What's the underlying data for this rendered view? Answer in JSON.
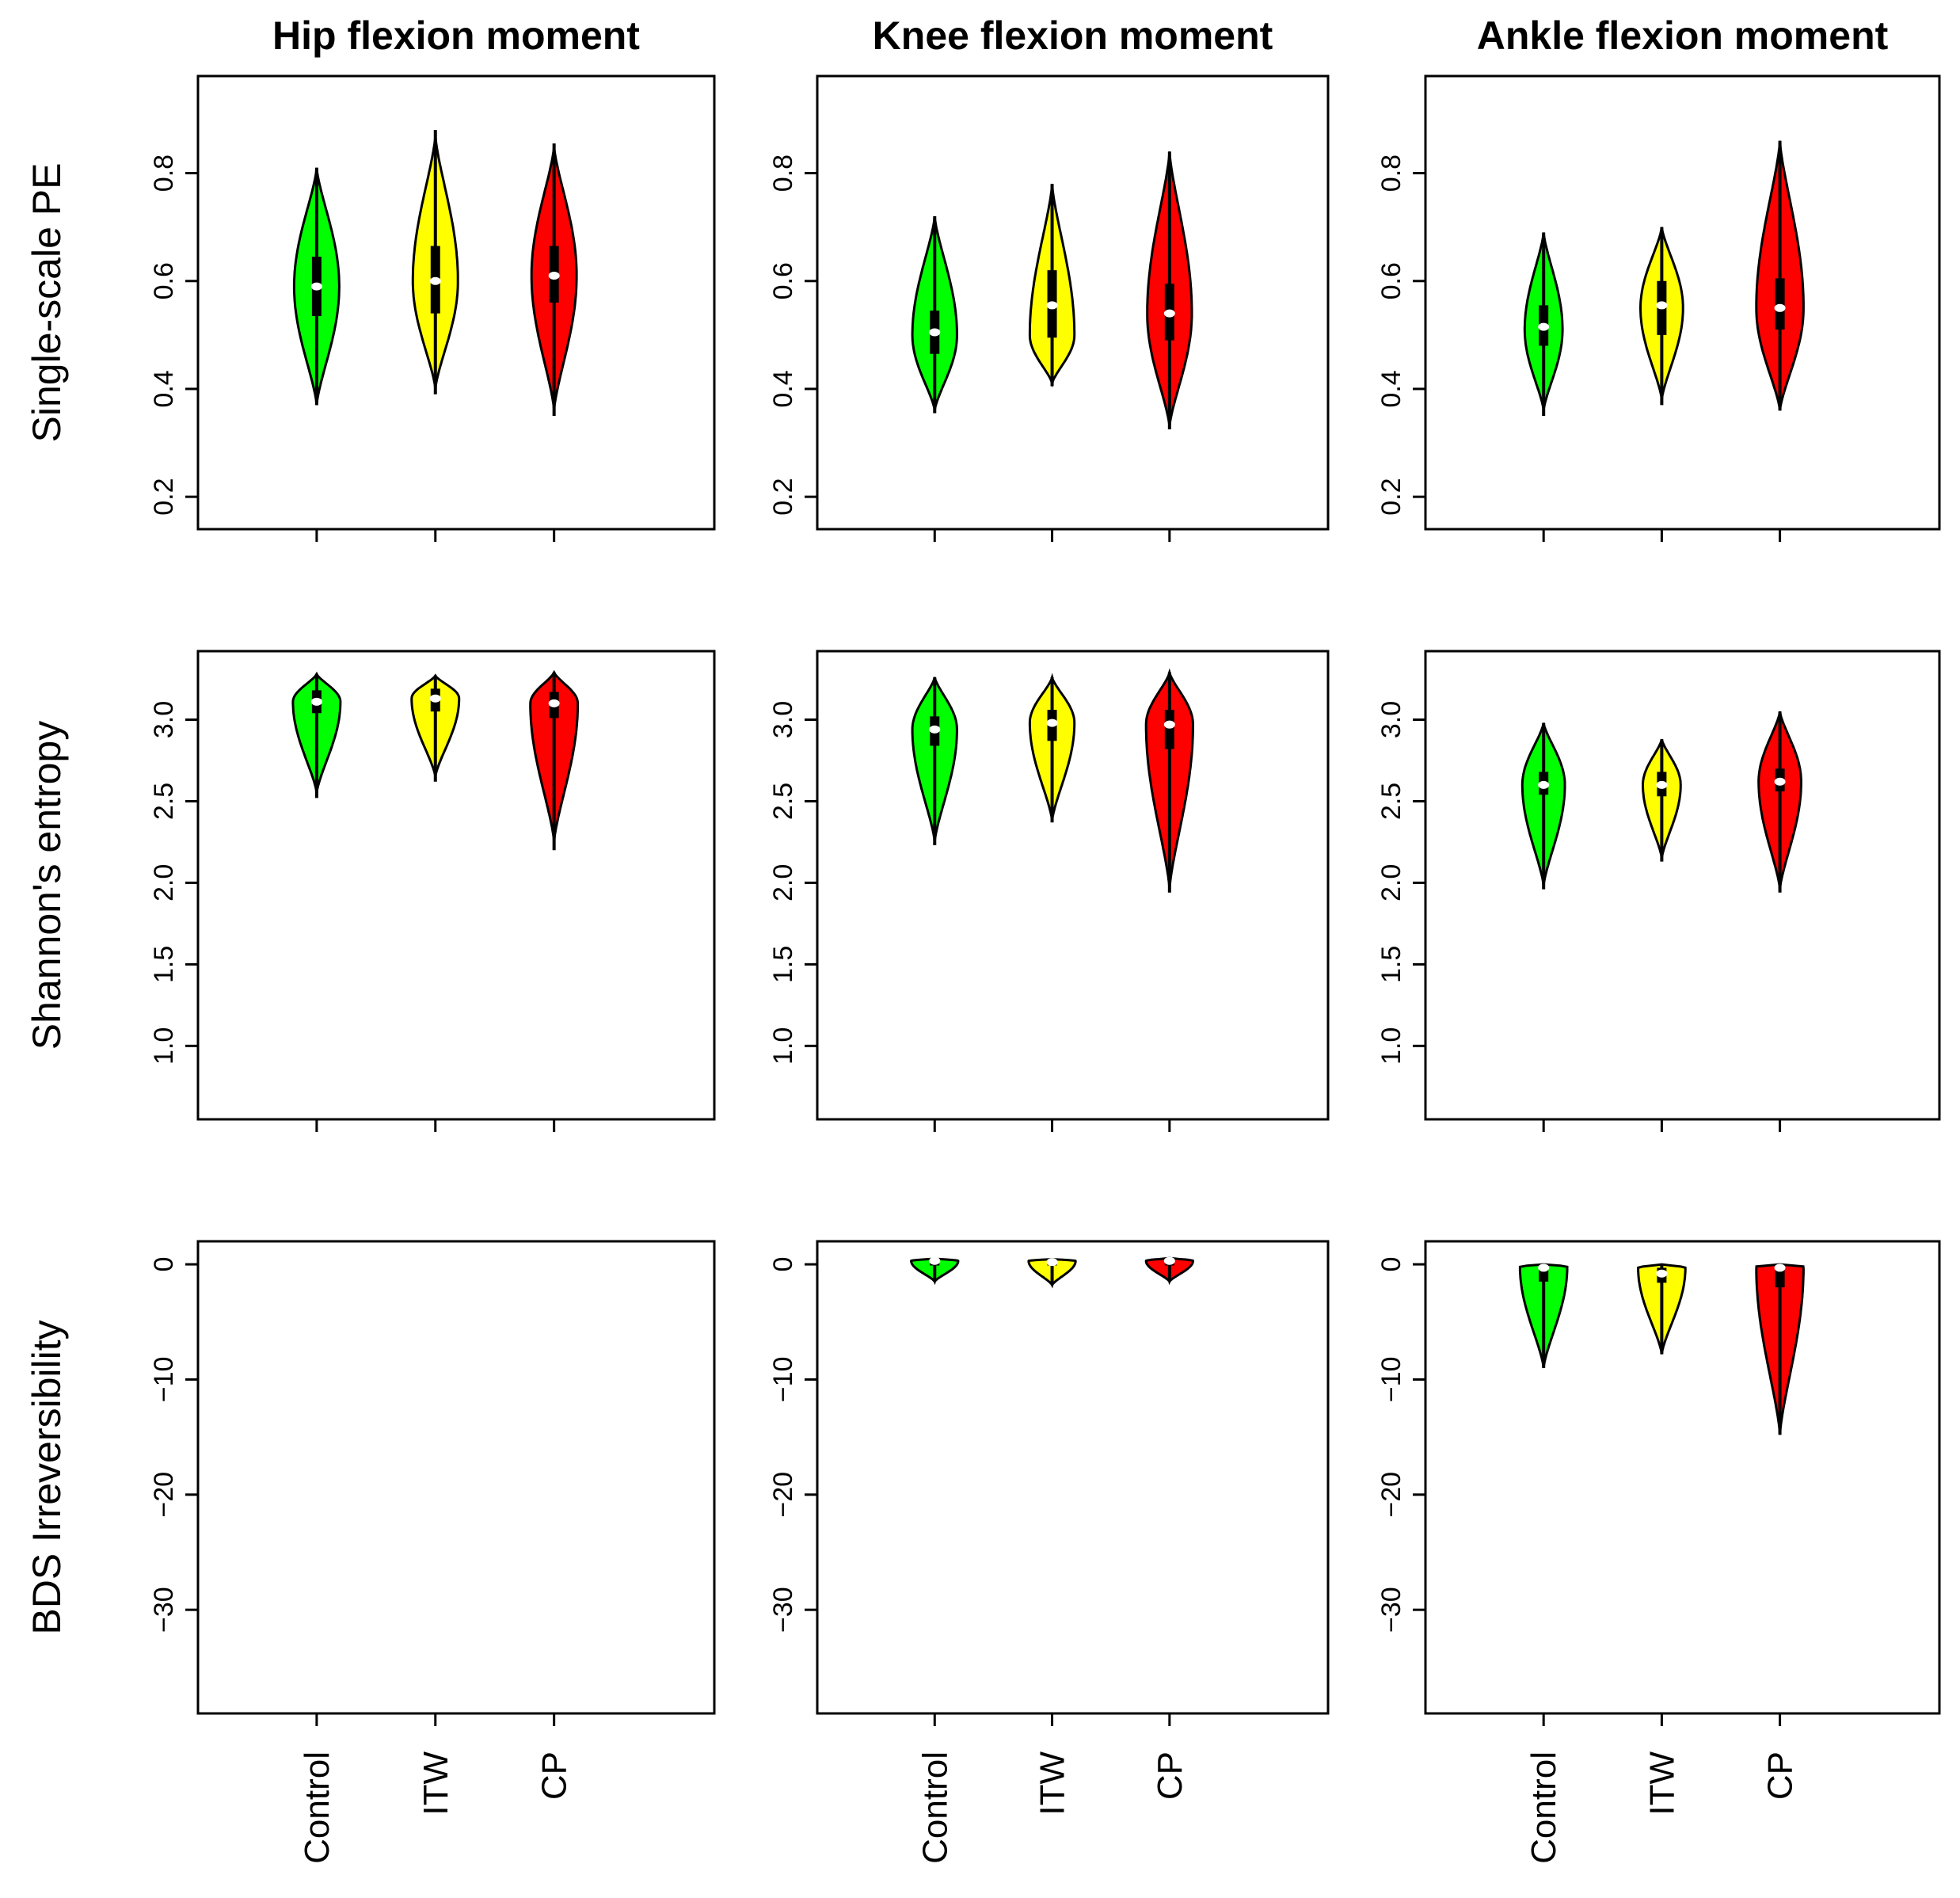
{
  "colors": {
    "Control": "#00ff00",
    "ITW": "#ffff00",
    "CP": "#ff0000"
  },
  "chart_data": {
    "type": "violin",
    "column_titles": [
      "Hip flexion moment",
      "Knee flexion moment",
      "Ankle flexion moment"
    ],
    "row_titles": [
      "Single-scale PE",
      "Shannon's entropy",
      "BDS Irreversibility"
    ],
    "groups": [
      "Control",
      "ITW",
      "CP"
    ],
    "rows": [
      {
        "ylabel": "Single-scale PE",
        "ylim": [
          0.14,
          0.98
        ],
        "yticks": [
          0.2,
          0.4,
          0.6,
          0.8
        ],
        "ytick_labels": [
          "0.2",
          "0.4",
          "0.6",
          "0.8"
        ],
        "panels": [
          {
            "title": "Hip flexion moment",
            "violins": [
              {
                "group": "Control",
                "min": 0.37,
                "max": 0.81,
                "q1": 0.535,
                "q3": 0.645,
                "median": 0.59,
                "mode": 0.59,
                "width": 0.38,
                "wmin": 0.37,
                "wmax": 0.81
              },
              {
                "group": "ITW",
                "min": 0.39,
                "max": 0.88,
                "q1": 0.54,
                "q3": 0.665,
                "median": 0.6,
                "mode": 0.6,
                "width": 0.38,
                "wmin": 0.4,
                "wmax": 0.87
              },
              {
                "group": "CP",
                "min": 0.35,
                "max": 0.855,
                "q1": 0.56,
                "q3": 0.665,
                "median": 0.61,
                "mode": 0.61,
                "width": 0.38,
                "wmin": 0.36,
                "wmax": 0.85
              }
            ]
          },
          {
            "title": "Knee flexion moment",
            "violins": [
              {
                "group": "Control",
                "min": 0.355,
                "max": 0.72,
                "q1": 0.465,
                "q3": 0.545,
                "median": 0.505,
                "mode": 0.5,
                "width": 0.38,
                "wmin": 0.36,
                "wmax": 0.72
              },
              {
                "group": "ITW",
                "min": 0.405,
                "max": 0.78,
                "q1": 0.495,
                "q3": 0.62,
                "median": 0.555,
                "mode": 0.5,
                "width": 0.38,
                "wmin": 0.41,
                "wmax": 0.78
              },
              {
                "group": "CP",
                "min": 0.325,
                "max": 0.84,
                "q1": 0.49,
                "q3": 0.595,
                "median": 0.54,
                "mode": 0.54,
                "width": 0.38,
                "wmin": 0.33,
                "wmax": 0.84
              }
            ]
          },
          {
            "title": "Ankle flexion moment",
            "violins": [
              {
                "group": "Control",
                "min": 0.35,
                "max": 0.69,
                "q1": 0.48,
                "q3": 0.555,
                "median": 0.515,
                "mode": 0.51,
                "width": 0.32,
                "wmin": 0.36,
                "wmax": 0.69
              },
              {
                "group": "ITW",
                "min": 0.37,
                "max": 0.7,
                "q1": 0.5,
                "q3": 0.6,
                "median": 0.555,
                "mode": 0.55,
                "width": 0.36,
                "wmin": 0.38,
                "wmax": 0.7
              },
              {
                "group": "CP",
                "min": 0.36,
                "max": 0.86,
                "q1": 0.51,
                "q3": 0.605,
                "median": 0.55,
                "mode": 0.55,
                "width": 0.4,
                "wmin": 0.36,
                "wmax": 0.86
              }
            ]
          }
        ]
      },
      {
        "ylabel": "Shannon's entropy",
        "ylim": [
          0.55,
          3.42
        ],
        "yticks": [
          1.0,
          1.5,
          2.0,
          2.5,
          3.0
        ],
        "ytick_labels": [
          "1.0",
          "1.5",
          "2.0",
          "2.5",
          "3.0"
        ],
        "panels": [
          {
            "title": "Hip flexion moment",
            "violins": [
              {
                "group": "Control",
                "min": 2.52,
                "max": 3.28,
                "q1": 3.04,
                "q3": 3.18,
                "median": 3.11,
                "mode": 3.11,
                "width": 0.4,
                "wmin": 2.55,
                "wmax": 3.28
              },
              {
                "group": "ITW",
                "min": 2.62,
                "max": 3.27,
                "q1": 3.05,
                "q3": 3.19,
                "median": 3.13,
                "mode": 3.13,
                "width": 0.4,
                "wmin": 2.65,
                "wmax": 3.27
              },
              {
                "group": "CP",
                "min": 2.2,
                "max": 3.29,
                "q1": 3.01,
                "q3": 3.17,
                "median": 3.1,
                "mode": 3.1,
                "width": 0.4,
                "wmin": 2.25,
                "wmax": 3.29
              }
            ]
          },
          {
            "title": "Knee flexion moment",
            "violins": [
              {
                "group": "Control",
                "min": 2.23,
                "max": 3.26,
                "q1": 2.84,
                "q3": 3.02,
                "median": 2.94,
                "mode": 2.94,
                "width": 0.38,
                "wmin": 2.25,
                "wmax": 3.26
              },
              {
                "group": "ITW",
                "min": 2.37,
                "max": 3.26,
                "q1": 2.87,
                "q3": 3.06,
                "median": 2.98,
                "mode": 2.98,
                "width": 0.38,
                "wmin": 2.38,
                "wmax": 3.26
              },
              {
                "group": "CP",
                "min": 1.94,
                "max": 3.29,
                "q1": 2.82,
                "q3": 3.06,
                "median": 2.97,
                "mode": 2.97,
                "width": 0.4,
                "wmin": 1.96,
                "wmax": 3.29
              }
            ]
          },
          {
            "title": "Ankle flexion moment",
            "violins": [
              {
                "group": "Control",
                "min": 1.96,
                "max": 2.98,
                "q1": 2.54,
                "q3": 2.68,
                "median": 2.6,
                "mode": 2.6,
                "width": 0.36,
                "wmin": 1.98,
                "wmax": 2.98
              },
              {
                "group": "ITW",
                "min": 2.13,
                "max": 2.88,
                "q1": 2.53,
                "q3": 2.68,
                "median": 2.6,
                "mode": 2.6,
                "width": 0.32,
                "wmin": 2.15,
                "wmax": 2.88
              },
              {
                "group": "CP",
                "min": 1.94,
                "max": 3.05,
                "q1": 2.56,
                "q3": 2.7,
                "median": 2.62,
                "mode": 2.62,
                "width": 0.36,
                "wmin": 1.96,
                "wmax": 3.05
              }
            ]
          }
        ]
      },
      {
        "ylabel": "BDS Irreversibility",
        "ylim": [
          -39,
          2
        ],
        "yticks": [
          -30,
          -20,
          -10,
          0
        ],
        "ytick_labels": [
          "−30",
          "−20",
          "−10",
          "0"
        ],
        "panels": [
          {
            "title": "Hip flexion moment",
            "violins": []
          },
          {
            "title": "Knee flexion moment",
            "violins": [
              {
                "group": "Control",
                "min": -1.5,
                "max": 0.5,
                "q1": -0.1,
                "q3": 0.4,
                "median": 0.3,
                "mode": 0.3,
                "width": 0.4,
                "wmin": -1.5,
                "wmax": 0.5
              },
              {
                "group": "ITW",
                "min": -1.8,
                "max": 0.45,
                "q1": -0.1,
                "q3": 0.35,
                "median": 0.2,
                "mode": 0.3,
                "width": 0.4,
                "wmin": -1.8,
                "wmax": 0.45
              },
              {
                "group": "CP",
                "min": -1.5,
                "max": 0.55,
                "q1": -0.1,
                "q3": 0.45,
                "median": 0.3,
                "mode": 0.3,
                "width": 0.4,
                "wmin": -1.5,
                "wmax": 0.55
              }
            ]
          },
          {
            "title": "Ankle flexion moment",
            "violins": [
              {
                "group": "Control",
                "min": -9.0,
                "max": 0.0,
                "q1": -1.5,
                "q3": -0.1,
                "median": -0.3,
                "mode": -0.2,
                "width": 0.4,
                "wmin": -9.0,
                "wmax": 0.0
              },
              {
                "group": "ITW",
                "min": -7.8,
                "max": 0.0,
                "q1": -1.6,
                "q3": -0.3,
                "median": -0.8,
                "mode": -0.3,
                "width": 0.4,
                "wmin": -7.8,
                "wmax": 0.0
              },
              {
                "group": "CP",
                "min": -14.8,
                "max": 0.0,
                "q1": -2.0,
                "q3": -0.1,
                "median": -0.3,
                "mode": -0.2,
                "width": 0.4,
                "wmin": -14.8,
                "wmax": 0.0
              }
            ]
          }
        ]
      }
    ]
  }
}
